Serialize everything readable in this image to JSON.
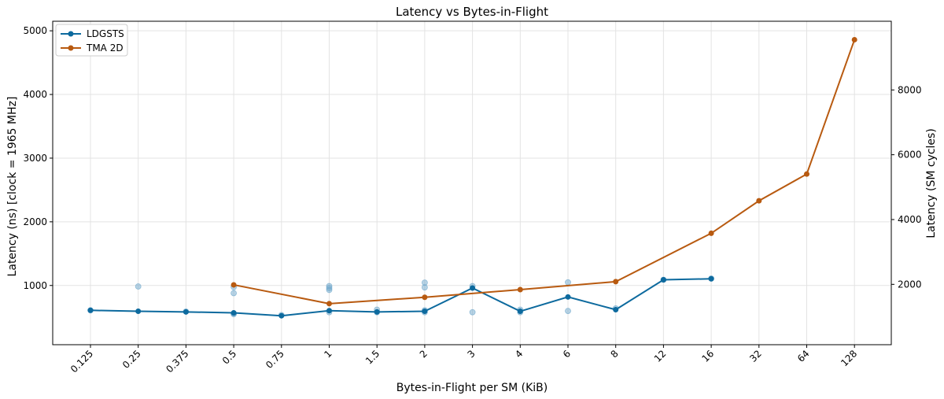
{
  "chart_data": {
    "type": "line",
    "title": "Latency vs Bytes-in-Flight",
    "xlabel": "Bytes-in-Flight per SM (KiB)",
    "ylabel": "Latency (ns)  [clock = 1965 MHz]",
    "y2label": "Latency (SM cycles)",
    "categories": [
      "0.125",
      "0.25",
      "0.375",
      "0.5",
      "0.75",
      "1",
      "1.5",
      "2",
      "3",
      "4",
      "6",
      "8",
      "12",
      "16",
      "32",
      "64",
      "128"
    ],
    "ylim": [
      70,
      5150
    ],
    "y_ticks": [
      1000,
      2000,
      3000,
      4000,
      5000
    ],
    "y2_ticks": [
      2000,
      4000,
      6000,
      8000
    ],
    "y2_per_y": 1.965,
    "grid": true,
    "legend_position": "top-left",
    "series": [
      {
        "name": "LDGSTS",
        "color": "#0d6a9e",
        "x": [
          "0.125",
          "0.25",
          "0.375",
          "0.5",
          "0.75",
          "1",
          "1.5",
          "2",
          "3",
          "4",
          "6",
          "8",
          "12",
          "16"
        ],
        "values": [
          610,
          595,
          585,
          570,
          525,
          605,
          585,
          595,
          960,
          595,
          820,
          620,
          1090,
          1105
        ]
      },
      {
        "name": "TMA 2D",
        "color": "#b85a10",
        "x": [
          "0.5",
          "1",
          "2",
          "4",
          "8",
          "16",
          "32",
          "64",
          "128"
        ],
        "values": [
          1010,
          715,
          815,
          935,
          1060,
          1820,
          2330,
          2750,
          4860
        ]
      }
    ],
    "scatter_points": {
      "series": "LDGSTS",
      "color": "#6fa8cc",
      "points": [
        [
          "0.125",
          610
        ],
        [
          "0.25",
          985
        ],
        [
          "0.375",
          590
        ],
        [
          "0.5",
          975
        ],
        [
          "0.5",
          880
        ],
        [
          "0.5",
          560
        ],
        [
          "0.5",
          550
        ],
        [
          "0.75",
          535
        ],
        [
          "1",
          990
        ],
        [
          "1",
          960
        ],
        [
          "1",
          930
        ],
        [
          "1",
          580
        ],
        [
          "1.5",
          620
        ],
        [
          "1.5",
          580
        ],
        [
          "2",
          1045
        ],
        [
          "2",
          970
        ],
        [
          "2",
          610
        ],
        [
          "2",
          580
        ],
        [
          "3",
          990
        ],
        [
          "3",
          580
        ],
        [
          "4",
          620
        ],
        [
          "4",
          580
        ],
        [
          "6",
          1050
        ],
        [
          "6",
          600
        ],
        [
          "8",
          640
        ],
        [
          "12",
          1090
        ],
        [
          "16",
          1110
        ]
      ]
    }
  }
}
